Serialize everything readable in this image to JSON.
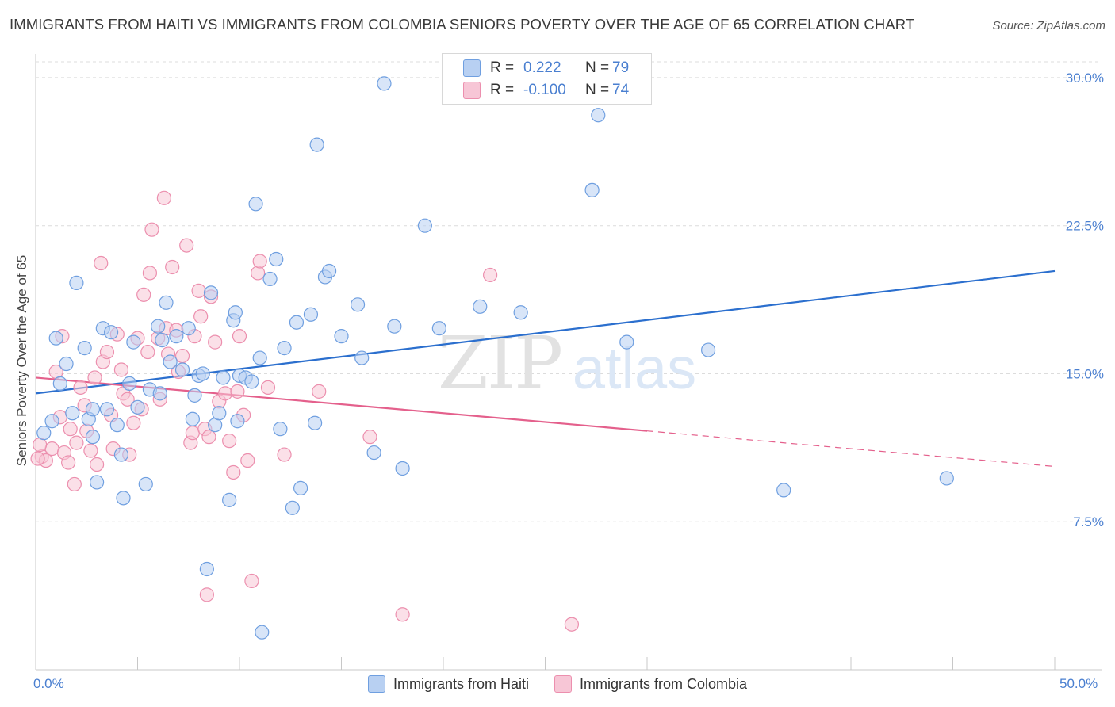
{
  "title": "IMMIGRANTS FROM HAITI VS IMMIGRANTS FROM COLOMBIA SENIORS POVERTY OVER THE AGE OF 65 CORRELATION CHART",
  "source": "Source: ZipAtlas.com",
  "watermark": {
    "zip": "ZIP",
    "atlas": "atlas"
  },
  "legend": {
    "rows": [
      {
        "r_label": "R =",
        "r_value": "0.222",
        "n_label": "N =",
        "n_value": "79"
      },
      {
        "r_label": "R =",
        "r_value": "-0.100",
        "n_label": "N =",
        "n_value": "74"
      }
    ]
  },
  "bottom_legend": {
    "haiti": "Immigrants from Haiti",
    "colombia": "Immigrants from Colombia"
  },
  "x_tick_left": "0.0%",
  "x_tick_right": "50.0%",
  "chart_data": {
    "type": "scatter",
    "xlabel": "",
    "ylabel": "Seniors Poverty Over the Age of 65",
    "xlim": [
      0,
      50
    ],
    "ylim": [
      0,
      30.8
    ],
    "y_ticks": [
      {
        "value": 7.5,
        "label": "7.5%"
      },
      {
        "value": 15.0,
        "label": "15.0%"
      },
      {
        "value": 22.5,
        "label": "22.5%"
      },
      {
        "value": 30.0,
        "label": "30.0%"
      }
    ],
    "grid": true,
    "colors": {
      "haiti": "#6f9fe0",
      "haiti_fill": "#b8d0f2",
      "haiti_line": "#2b6fce",
      "colombia": "#ec8fae",
      "colombia_fill": "#f7c6d6",
      "colombia_line": "#e4608c"
    },
    "series": [
      {
        "name": "Immigrants from Haiti",
        "key": "haiti",
        "trend": {
          "x": [
            0,
            50
          ],
          "y": [
            14.0,
            20.2
          ],
          "dashed_from": null
        },
        "points": [
          [
            0.4,
            12.0
          ],
          [
            0.8,
            12.6
          ],
          [
            1.0,
            16.8
          ],
          [
            1.2,
            14.5
          ],
          [
            1.5,
            15.5
          ],
          [
            1.8,
            13.0
          ],
          [
            2.0,
            19.6
          ],
          [
            2.4,
            16.3
          ],
          [
            2.6,
            12.7
          ],
          [
            2.8,
            11.8
          ],
          [
            3.0,
            9.5
          ],
          [
            3.3,
            17.3
          ],
          [
            3.5,
            13.2
          ],
          [
            3.7,
            17.1
          ],
          [
            4.0,
            12.4
          ],
          [
            4.2,
            10.9
          ],
          [
            4.3,
            8.7
          ],
          [
            4.6,
            14.5
          ],
          [
            4.8,
            16.6
          ],
          [
            5.0,
            13.3
          ],
          [
            5.4,
            9.4
          ],
          [
            5.6,
            14.2
          ],
          [
            6.0,
            17.4
          ],
          [
            6.2,
            16.7
          ],
          [
            6.4,
            18.6
          ],
          [
            6.6,
            15.6
          ],
          [
            6.9,
            16.9
          ],
          [
            7.2,
            15.2
          ],
          [
            7.5,
            17.3
          ],
          [
            7.7,
            12.7
          ],
          [
            7.8,
            13.9
          ],
          [
            8.0,
            14.9
          ],
          [
            8.2,
            15.0
          ],
          [
            8.4,
            5.1
          ],
          [
            8.6,
            19.1
          ],
          [
            8.8,
            12.4
          ],
          [
            9.0,
            13.0
          ],
          [
            9.2,
            14.8
          ],
          [
            9.5,
            8.6
          ],
          [
            9.7,
            17.7
          ],
          [
            9.8,
            18.1
          ],
          [
            10.0,
            14.9
          ],
          [
            10.3,
            14.8
          ],
          [
            10.6,
            14.6
          ],
          [
            10.8,
            23.6
          ],
          [
            11.0,
            15.8
          ],
          [
            11.1,
            1.9
          ],
          [
            11.5,
            19.8
          ],
          [
            11.8,
            20.8
          ],
          [
            12.0,
            12.2
          ],
          [
            12.2,
            16.3
          ],
          [
            12.6,
            8.2
          ],
          [
            12.8,
            17.6
          ],
          [
            13.0,
            9.2
          ],
          [
            13.5,
            18.0
          ],
          [
            13.7,
            12.5
          ],
          [
            13.8,
            26.6
          ],
          [
            14.2,
            19.9
          ],
          [
            14.4,
            20.2
          ],
          [
            15.0,
            16.9
          ],
          [
            15.8,
            18.5
          ],
          [
            16.0,
            15.8
          ],
          [
            16.6,
            11.0
          ],
          [
            17.1,
            29.7
          ],
          [
            17.6,
            17.4
          ],
          [
            18.0,
            10.2
          ],
          [
            19.1,
            22.5
          ],
          [
            19.8,
            17.3
          ],
          [
            21.8,
            18.4
          ],
          [
            23.8,
            18.1
          ],
          [
            27.3,
            24.3
          ],
          [
            27.6,
            28.1
          ],
          [
            29.0,
            16.6
          ],
          [
            36.7,
            9.1
          ],
          [
            44.7,
            9.7
          ],
          [
            33.0,
            16.2
          ],
          [
            2.8,
            13.2
          ],
          [
            6.1,
            14.0
          ],
          [
            9.9,
            12.6
          ]
        ]
      },
      {
        "name": "Immigrants from Colombia",
        "key": "colombia",
        "trend": {
          "x": [
            0,
            30
          ],
          "y": [
            14.8,
            12.1
          ],
          "dashed_from": 30,
          "dashed_to": [
            50,
            10.3
          ]
        },
        "points": [
          [
            0.3,
            10.8
          ],
          [
            0.5,
            10.6
          ],
          [
            0.8,
            11.2
          ],
          [
            1.0,
            15.1
          ],
          [
            1.2,
            12.8
          ],
          [
            1.4,
            11.0
          ],
          [
            1.6,
            10.5
          ],
          [
            1.7,
            12.2
          ],
          [
            1.9,
            9.4
          ],
          [
            2.0,
            11.5
          ],
          [
            2.2,
            14.3
          ],
          [
            2.4,
            13.4
          ],
          [
            2.5,
            12.1
          ],
          [
            2.7,
            11.1
          ],
          [
            2.9,
            14.8
          ],
          [
            3.0,
            10.4
          ],
          [
            3.2,
            20.6
          ],
          [
            3.3,
            15.6
          ],
          [
            3.5,
            16.1
          ],
          [
            3.7,
            12.9
          ],
          [
            3.8,
            11.2
          ],
          [
            4.0,
            17.0
          ],
          [
            4.2,
            15.2
          ],
          [
            4.3,
            14.0
          ],
          [
            4.5,
            13.7
          ],
          [
            4.6,
            10.9
          ],
          [
            4.8,
            12.5
          ],
          [
            5.0,
            16.8
          ],
          [
            5.2,
            13.2
          ],
          [
            5.3,
            19.0
          ],
          [
            5.5,
            16.1
          ],
          [
            5.6,
            20.1
          ],
          [
            5.7,
            22.3
          ],
          [
            6.0,
            16.8
          ],
          [
            6.1,
            13.7
          ],
          [
            6.3,
            23.9
          ],
          [
            6.4,
            17.3
          ],
          [
            6.5,
            16.0
          ],
          [
            6.7,
            20.4
          ],
          [
            6.9,
            17.2
          ],
          [
            7.0,
            15.1
          ],
          [
            7.2,
            15.9
          ],
          [
            7.4,
            21.5
          ],
          [
            7.6,
            11.5
          ],
          [
            7.7,
            12.0
          ],
          [
            7.8,
            16.9
          ],
          [
            8.0,
            19.2
          ],
          [
            8.1,
            17.9
          ],
          [
            8.3,
            12.2
          ],
          [
            8.4,
            3.8
          ],
          [
            8.5,
            11.8
          ],
          [
            8.6,
            18.9
          ],
          [
            8.8,
            16.6
          ],
          [
            9.0,
            13.6
          ],
          [
            9.3,
            14.0
          ],
          [
            9.5,
            11.6
          ],
          [
            9.7,
            10.0
          ],
          [
            9.9,
            14.1
          ],
          [
            10.0,
            16.9
          ],
          [
            10.2,
            12.9
          ],
          [
            10.4,
            10.6
          ],
          [
            10.6,
            4.5
          ],
          [
            10.9,
            20.1
          ],
          [
            11.0,
            20.7
          ],
          [
            11.4,
            14.3
          ],
          [
            12.2,
            10.9
          ],
          [
            13.9,
            14.1
          ],
          [
            16.4,
            11.8
          ],
          [
            18.0,
            2.8
          ],
          [
            22.3,
            20.0
          ],
          [
            26.3,
            2.3
          ],
          [
            0.1,
            10.7
          ],
          [
            0.2,
            11.4
          ],
          [
            1.3,
            16.9
          ]
        ]
      }
    ]
  }
}
